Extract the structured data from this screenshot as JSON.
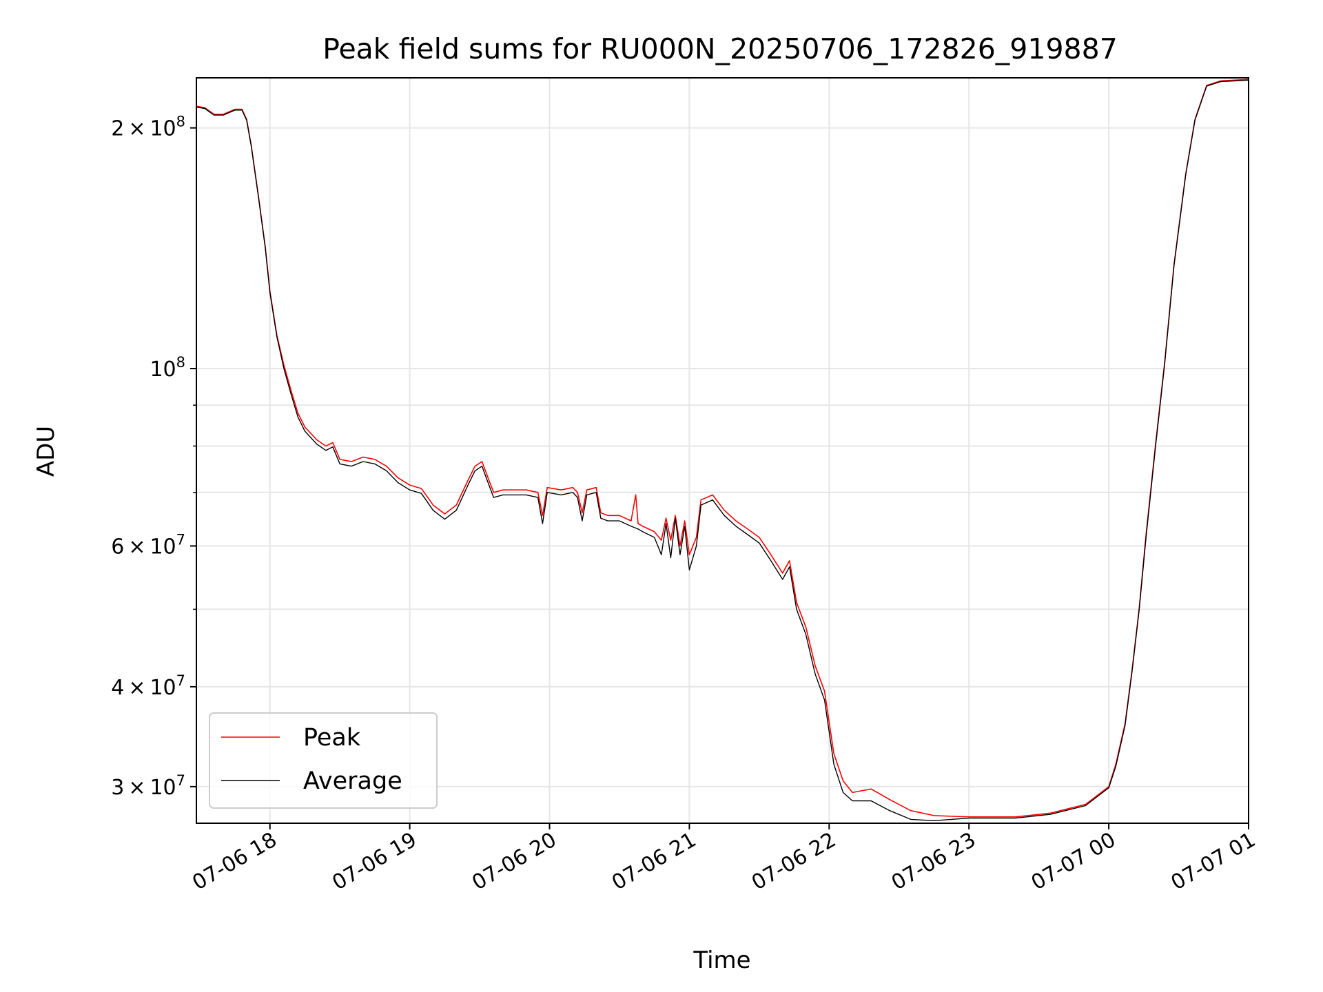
{
  "chart_data": {
    "type": "line",
    "title": "Peak field sums for RU000N_20250706_172826_919887",
    "xlabel": "Time",
    "ylabel": "ADU",
    "x_range": [
      "2025-07-06 17:28:26",
      "2025-07-07 01:00:00"
    ],
    "y_range": [
      27000000,
      231000000
    ],
    "y_scale": "log",
    "grid": true,
    "legend_position": "lower-left",
    "x_ticks": [
      {
        "value": "2025-07-06 18:00",
        "label": "07-06 18"
      },
      {
        "value": "2025-07-06 19:00",
        "label": "07-06 19"
      },
      {
        "value": "2025-07-06 20:00",
        "label": "07-06 20"
      },
      {
        "value": "2025-07-06 21:00",
        "label": "07-06 21"
      },
      {
        "value": "2025-07-06 22:00",
        "label": "07-06 22"
      },
      {
        "value": "2025-07-06 23:00",
        "label": "07-06 23"
      },
      {
        "value": "2025-07-07 00:00",
        "label": "07-07 00"
      },
      {
        "value": "2025-07-07 01:00",
        "label": "07-07 01"
      }
    ],
    "y_ticks": [
      {
        "value": 30000000,
        "mant": "3",
        "exp": "7"
      },
      {
        "value": 40000000,
        "mant": "4",
        "exp": "7"
      },
      {
        "value": 60000000,
        "mant": "6",
        "exp": "7"
      },
      {
        "value": 100000000,
        "mant": "",
        "exp": "8"
      },
      {
        "value": 200000000,
        "mant": "2",
        "exp": "8"
      }
    ],
    "y_minor_ticks": [
      50000000,
      70000000,
      80000000,
      90000000
    ],
    "series": [
      {
        "name": "Peak",
        "color": "#ff0000",
        "points": [
          [
            "2025-07-06 17:28",
            213000000
          ],
          [
            "2025-07-06 17:32",
            212000000
          ],
          [
            "2025-07-06 17:36",
            208000000
          ],
          [
            "2025-07-06 17:40",
            208000000
          ],
          [
            "2025-07-06 17:45",
            211000000
          ],
          [
            "2025-07-06 17:48",
            211000000
          ],
          [
            "2025-07-06 17:50",
            205000000
          ],
          [
            "2025-07-06 17:52",
            190000000
          ],
          [
            "2025-07-06 17:55",
            165000000
          ],
          [
            "2025-07-06 17:58",
            142000000
          ],
          [
            "2025-07-06 18:00",
            125000000
          ],
          [
            "2025-07-06 18:03",
            110000000
          ],
          [
            "2025-07-06 18:06",
            101000000
          ],
          [
            "2025-07-06 18:09",
            94000000
          ],
          [
            "2025-07-06 18:12",
            88000000
          ],
          [
            "2025-07-06 18:15",
            84500000
          ],
          [
            "2025-07-06 18:20",
            81500000
          ],
          [
            "2025-07-06 18:24",
            80000000
          ],
          [
            "2025-07-06 18:27",
            80800000
          ],
          [
            "2025-07-06 18:30",
            77000000
          ],
          [
            "2025-07-06 18:35",
            76500000
          ],
          [
            "2025-07-06 18:40",
            77500000
          ],
          [
            "2025-07-06 18:45",
            77000000
          ],
          [
            "2025-07-06 18:50",
            75500000
          ],
          [
            "2025-07-06 18:55",
            73000000
          ],
          [
            "2025-07-06 19:00",
            71500000
          ],
          [
            "2025-07-06 19:05",
            70800000
          ],
          [
            "2025-07-06 19:10",
            67500000
          ],
          [
            "2025-07-06 19:15",
            65800000
          ],
          [
            "2025-07-06 19:20",
            67500000
          ],
          [
            "2025-07-06 19:25",
            72500000
          ],
          [
            "2025-07-06 19:28",
            75500000
          ],
          [
            "2025-07-06 19:31",
            76500000
          ],
          [
            "2025-07-06 19:34",
            72500000
          ],
          [
            "2025-07-06 19:36",
            70000000
          ],
          [
            "2025-07-06 19:40",
            70500000
          ],
          [
            "2025-07-06 19:50",
            70500000
          ],
          [
            "2025-07-06 19:55",
            70000000
          ],
          [
            "2025-07-06 19:57",
            65500000
          ],
          [
            "2025-07-06 19:59",
            71000000
          ],
          [
            "2025-07-06 20:05",
            70500000
          ],
          [
            "2025-07-06 20:10",
            71000000
          ],
          [
            "2025-07-06 20:12",
            70000000
          ],
          [
            "2025-07-06 20:14",
            66000000
          ],
          [
            "2025-07-06 20:16",
            70500000
          ],
          [
            "2025-07-06 20:20",
            71000000
          ],
          [
            "2025-07-06 20:22",
            66000000
          ],
          [
            "2025-07-06 20:25",
            65500000
          ],
          [
            "2025-07-06 20:30",
            65500000
          ],
          [
            "2025-07-06 20:35",
            64500000
          ],
          [
            "2025-07-06 20:37",
            69500000
          ],
          [
            "2025-07-06 20:38",
            64000000
          ],
          [
            "2025-07-06 20:40",
            63500000
          ],
          [
            "2025-07-06 20:45",
            62500000
          ],
          [
            "2025-07-06 20:48",
            61000000
          ],
          [
            "2025-07-06 20:50",
            65000000
          ],
          [
            "2025-07-06 20:52",
            61000000
          ],
          [
            "2025-07-06 20:54",
            65500000
          ],
          [
            "2025-07-06 20:56",
            60000000
          ],
          [
            "2025-07-06 20:58",
            64500000
          ],
          [
            "2025-07-06 21:00",
            58500000
          ],
          [
            "2025-07-06 21:03",
            61500000
          ],
          [
            "2025-07-06 21:05",
            68500000
          ],
          [
            "2025-07-06 21:10",
            69500000
          ],
          [
            "2025-07-06 21:15",
            66500000
          ],
          [
            "2025-07-06 21:20",
            64500000
          ],
          [
            "2025-07-06 21:25",
            63000000
          ],
          [
            "2025-07-06 21:30",
            61500000
          ],
          [
            "2025-07-06 21:35",
            58500000
          ],
          [
            "2025-07-06 21:40",
            55500000
          ],
          [
            "2025-07-06 21:43",
            57500000
          ],
          [
            "2025-07-06 21:46",
            51000000
          ],
          [
            "2025-07-06 21:50",
            47500000
          ],
          [
            "2025-07-06 21:54",
            42500000
          ],
          [
            "2025-07-06 21:58",
            39500000
          ],
          [
            "2025-07-06 22:02",
            33000000
          ],
          [
            "2025-07-06 22:06",
            30500000
          ],
          [
            "2025-07-06 22:10",
            29500000
          ],
          [
            "2025-07-06 22:18",
            29800000
          ],
          [
            "2025-07-06 22:26",
            28900000
          ],
          [
            "2025-07-06 22:35",
            28000000
          ],
          [
            "2025-07-06 22:45",
            27600000
          ],
          [
            "2025-07-06 23:00",
            27500000
          ],
          [
            "2025-07-06 23:20",
            27500000
          ],
          [
            "2025-07-06 23:35",
            27800000
          ],
          [
            "2025-07-06 23:50",
            28500000
          ],
          [
            "2025-07-07 00:00",
            30000000
          ],
          [
            "2025-07-07 00:03",
            32000000
          ],
          [
            "2025-07-07 00:07",
            36000000
          ],
          [
            "2025-07-07 00:10",
            42000000
          ],
          [
            "2025-07-07 00:13",
            50000000
          ],
          [
            "2025-07-07 00:16",
            62000000
          ],
          [
            "2025-07-07 00:20",
            80000000
          ],
          [
            "2025-07-07 00:24",
            102000000
          ],
          [
            "2025-07-07 00:28",
            135000000
          ],
          [
            "2025-07-07 00:33",
            175000000
          ],
          [
            "2025-07-07 00:37",
            205000000
          ],
          [
            "2025-07-07 00:42",
            226000000
          ],
          [
            "2025-07-07 00:48",
            229000000
          ],
          [
            "2025-07-07 01:00",
            230000000
          ]
        ]
      },
      {
        "name": "Average",
        "color": "#000000",
        "points": [
          [
            "2025-07-06 17:28",
            212500000
          ],
          [
            "2025-07-06 17:32",
            211500000
          ],
          [
            "2025-07-06 17:36",
            207500000
          ],
          [
            "2025-07-06 17:40",
            207500000
          ],
          [
            "2025-07-06 17:45",
            210500000
          ],
          [
            "2025-07-06 17:48",
            210500000
          ],
          [
            "2025-07-06 17:50",
            204500000
          ],
          [
            "2025-07-06 17:52",
            189500000
          ],
          [
            "2025-07-06 17:55",
            164500000
          ],
          [
            "2025-07-06 17:58",
            141500000
          ],
          [
            "2025-07-06 18:00",
            124500000
          ],
          [
            "2025-07-06 18:03",
            109500000
          ],
          [
            "2025-07-06 18:06",
            100000000
          ],
          [
            "2025-07-06 18:09",
            93000000
          ],
          [
            "2025-07-06 18:12",
            87000000
          ],
          [
            "2025-07-06 18:15",
            83500000
          ],
          [
            "2025-07-06 18:20",
            80500000
          ],
          [
            "2025-07-06 18:24",
            79000000
          ],
          [
            "2025-07-06 18:27",
            79800000
          ],
          [
            "2025-07-06 18:30",
            76000000
          ],
          [
            "2025-07-06 18:35",
            75500000
          ],
          [
            "2025-07-06 18:40",
            76500000
          ],
          [
            "2025-07-06 18:45",
            76000000
          ],
          [
            "2025-07-06 18:50",
            74500000
          ],
          [
            "2025-07-06 18:55",
            72000000
          ],
          [
            "2025-07-06 19:00",
            70500000
          ],
          [
            "2025-07-06 19:05",
            69800000
          ],
          [
            "2025-07-06 19:10",
            66500000
          ],
          [
            "2025-07-06 19:15",
            64800000
          ],
          [
            "2025-07-06 19:20",
            66500000
          ],
          [
            "2025-07-06 19:25",
            71500000
          ],
          [
            "2025-07-06 19:28",
            74500000
          ],
          [
            "2025-07-06 19:31",
            75500000
          ],
          [
            "2025-07-06 19:34",
            71500000
          ],
          [
            "2025-07-06 19:36",
            69000000
          ],
          [
            "2025-07-06 19:40",
            69500000
          ],
          [
            "2025-07-06 19:50",
            69500000
          ],
          [
            "2025-07-06 19:55",
            69000000
          ],
          [
            "2025-07-06 19:57",
            64000000
          ],
          [
            "2025-07-06 19:59",
            70000000
          ],
          [
            "2025-07-06 20:05",
            69500000
          ],
          [
            "2025-07-06 20:10",
            70000000
          ],
          [
            "2025-07-06 20:12",
            69000000
          ],
          [
            "2025-07-06 20:14",
            64500000
          ],
          [
            "2025-07-06 20:16",
            69500000
          ],
          [
            "2025-07-06 20:20",
            70000000
          ],
          [
            "2025-07-06 20:22",
            65000000
          ],
          [
            "2025-07-06 20:25",
            64500000
          ],
          [
            "2025-07-06 20:30",
            64500000
          ],
          [
            "2025-07-06 20:35",
            63500000
          ],
          [
            "2025-07-06 20:38",
            63000000
          ],
          [
            "2025-07-06 20:40",
            62500000
          ],
          [
            "2025-07-06 20:45",
            61500000
          ],
          [
            "2025-07-06 20:48",
            58500000
          ],
          [
            "2025-07-06 20:50",
            64000000
          ],
          [
            "2025-07-06 20:52",
            58000000
          ],
          [
            "2025-07-06 20:54",
            65000000
          ],
          [
            "2025-07-06 20:56",
            58500000
          ],
          [
            "2025-07-06 20:58",
            63500000
          ],
          [
            "2025-07-06 21:00",
            56000000
          ],
          [
            "2025-07-06 21:03",
            60000000
          ],
          [
            "2025-07-06 21:05",
            67500000
          ],
          [
            "2025-07-06 21:10",
            68500000
          ],
          [
            "2025-07-06 21:15",
            65500000
          ],
          [
            "2025-07-06 21:20",
            63500000
          ],
          [
            "2025-07-06 21:25",
            62000000
          ],
          [
            "2025-07-06 21:30",
            60500000
          ],
          [
            "2025-07-06 21:35",
            57500000
          ],
          [
            "2025-07-06 21:40",
            54500000
          ],
          [
            "2025-07-06 21:43",
            56500000
          ],
          [
            "2025-07-06 21:46",
            50000000
          ],
          [
            "2025-07-06 21:50",
            46500000
          ],
          [
            "2025-07-06 21:54",
            41500000
          ],
          [
            "2025-07-06 21:58",
            38500000
          ],
          [
            "2025-07-06 22:02",
            32000000
          ],
          [
            "2025-07-06 22:06",
            29500000
          ],
          [
            "2025-07-06 22:10",
            28800000
          ],
          [
            "2025-07-06 22:18",
            28800000
          ],
          [
            "2025-07-06 22:26",
            28000000
          ],
          [
            "2025-07-06 22:35",
            27300000
          ],
          [
            "2025-07-06 22:45",
            27200000
          ],
          [
            "2025-07-06 23:00",
            27400000
          ],
          [
            "2025-07-06 23:20",
            27400000
          ],
          [
            "2025-07-06 23:35",
            27700000
          ],
          [
            "2025-07-06 23:50",
            28400000
          ],
          [
            "2025-07-07 00:00",
            29900000
          ],
          [
            "2025-07-07 00:03",
            31800000
          ],
          [
            "2025-07-07 00:07",
            35800000
          ],
          [
            "2025-07-07 00:10",
            41800000
          ],
          [
            "2025-07-07 00:13",
            49800000
          ],
          [
            "2025-07-07 00:16",
            61500000
          ],
          [
            "2025-07-07 00:20",
            79500000
          ],
          [
            "2025-07-07 00:24",
            101500000
          ],
          [
            "2025-07-07 00:28",
            134500000
          ],
          [
            "2025-07-07 00:33",
            174500000
          ],
          [
            "2025-07-07 00:37",
            204500000
          ],
          [
            "2025-07-07 00:42",
            225500000
          ],
          [
            "2025-07-07 00:48",
            228500000
          ],
          [
            "2025-07-07 01:00",
            229500000
          ]
        ]
      }
    ]
  }
}
